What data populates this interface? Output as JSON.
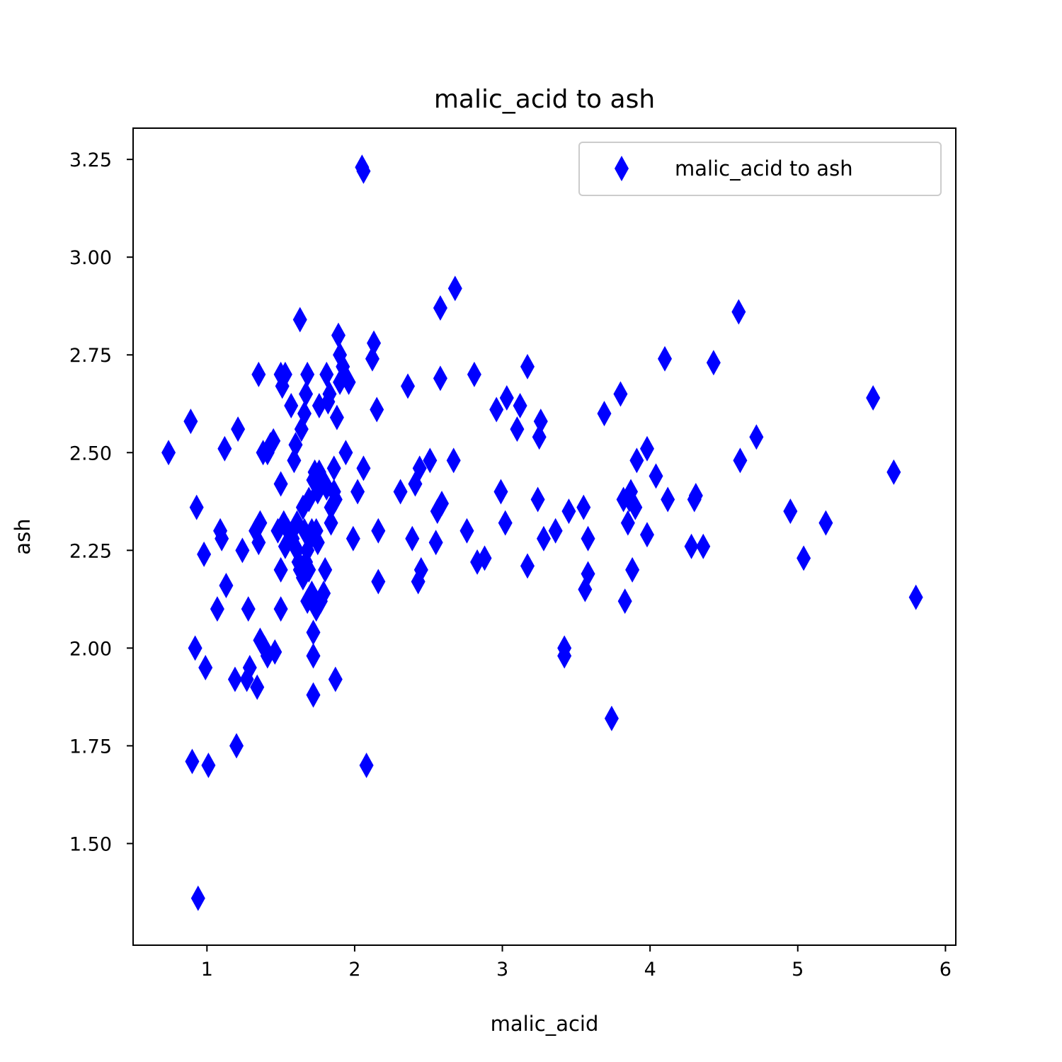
{
  "chart_data": {
    "type": "scatter",
    "title": "malic_acid to ash",
    "xlabel": "malic_acid",
    "ylabel": "ash",
    "xlim": [
      0.5,
      6.07
    ],
    "ylim": [
      1.24,
      3.33
    ],
    "xticks": [
      1,
      2,
      3,
      4,
      5,
      6
    ],
    "xtick_labels": [
      "1",
      "2",
      "3",
      "4",
      "5",
      "6"
    ],
    "yticks": [
      1.5,
      1.75,
      2.0,
      2.25,
      2.5,
      2.75,
      3.0,
      3.25
    ],
    "ytick_labels": [
      "1.50",
      "1.75",
      "2.00",
      "2.25",
      "2.50",
      "2.75",
      "3.00",
      "3.25"
    ],
    "grid": false,
    "legend": {
      "position": "top-right",
      "entries": [
        "malic_acid to ash"
      ]
    },
    "marker": "thin_diamond",
    "color": "#0000ff",
    "series": [
      {
        "name": "malic_acid to ash",
        "points": [
          [
            0.74,
            2.5
          ],
          [
            0.89,
            2.58
          ],
          [
            0.9,
            1.71
          ],
          [
            0.92,
            2.0
          ],
          [
            0.93,
            2.36
          ],
          [
            0.94,
            1.36
          ],
          [
            0.98,
            2.24
          ],
          [
            0.99,
            1.95
          ],
          [
            1.01,
            1.7
          ],
          [
            1.07,
            2.1
          ],
          [
            1.09,
            2.3
          ],
          [
            1.1,
            2.28
          ],
          [
            1.12,
            2.51
          ],
          [
            1.13,
            2.16
          ],
          [
            1.19,
            1.92
          ],
          [
            1.2,
            1.75
          ],
          [
            1.21,
            2.56
          ],
          [
            1.24,
            2.25
          ],
          [
            1.27,
            1.92
          ],
          [
            1.28,
            2.1
          ],
          [
            1.29,
            1.95
          ],
          [
            1.33,
            2.3
          ],
          [
            1.34,
            1.9
          ],
          [
            1.35,
            2.27
          ],
          [
            1.35,
            2.7
          ],
          [
            1.36,
            2.32
          ],
          [
            1.36,
            2.02
          ],
          [
            1.38,
            2.5
          ],
          [
            1.39,
            2.0
          ],
          [
            1.41,
            1.98
          ],
          [
            1.41,
            2.5
          ],
          [
            1.43,
            2.52
          ],
          [
            1.45,
            2.53
          ],
          [
            1.46,
            1.99
          ],
          [
            1.48,
            2.3
          ],
          [
            1.5,
            2.2
          ],
          [
            1.5,
            2.42
          ],
          [
            1.5,
            2.1
          ],
          [
            1.5,
            2.7
          ],
          [
            1.51,
            2.67
          ],
          [
            1.52,
            2.32
          ],
          [
            1.53,
            2.7
          ],
          [
            1.53,
            2.26
          ],
          [
            1.55,
            2.3
          ],
          [
            1.57,
            2.62
          ],
          [
            1.58,
            2.28
          ],
          [
            1.59,
            2.48
          ],
          [
            1.6,
            2.52
          ],
          [
            1.61,
            2.25
          ],
          [
            1.61,
            2.32
          ],
          [
            1.62,
            2.22
          ],
          [
            1.63,
            2.84
          ],
          [
            1.63,
            2.2
          ],
          [
            1.64,
            2.56
          ],
          [
            1.65,
            2.36
          ],
          [
            1.65,
            2.18
          ],
          [
            1.66,
            2.3
          ],
          [
            1.66,
            2.6
          ],
          [
            1.67,
            2.22
          ],
          [
            1.67,
            2.65
          ],
          [
            1.68,
            2.12
          ],
          [
            1.68,
            2.25
          ],
          [
            1.68,
            2.7
          ],
          [
            1.69,
            2.38
          ],
          [
            1.69,
            2.2
          ],
          [
            1.7,
            2.28
          ],
          [
            1.71,
            2.3
          ],
          [
            1.71,
            2.14
          ],
          [
            1.72,
            2.43
          ],
          [
            1.72,
            2.04
          ],
          [
            1.72,
            1.98
          ],
          [
            1.72,
            1.88
          ],
          [
            1.73,
            2.45
          ],
          [
            1.74,
            2.3
          ],
          [
            1.74,
            2.1
          ],
          [
            1.75,
            2.4
          ],
          [
            1.75,
            2.27
          ],
          [
            1.76,
            2.45
          ],
          [
            1.76,
            2.62
          ],
          [
            1.77,
            2.12
          ],
          [
            1.78,
            2.43
          ],
          [
            1.79,
            2.14
          ],
          [
            1.8,
            2.42
          ],
          [
            1.8,
            2.2
          ],
          [
            1.81,
            2.41
          ],
          [
            1.81,
            2.7
          ],
          [
            1.82,
            2.63
          ],
          [
            1.83,
            2.65
          ],
          [
            1.84,
            2.32
          ],
          [
            1.84,
            2.36
          ],
          [
            1.86,
            2.4
          ],
          [
            1.86,
            2.46
          ],
          [
            1.87,
            2.38
          ],
          [
            1.87,
            1.92
          ],
          [
            1.88,
            2.59
          ],
          [
            1.89,
            2.8
          ],
          [
            1.9,
            2.68
          ],
          [
            1.9,
            2.75
          ],
          [
            1.92,
            2.72
          ],
          [
            1.93,
            2.7
          ],
          [
            1.94,
            2.5
          ],
          [
            1.96,
            2.68
          ],
          [
            1.99,
            2.28
          ],
          [
            2.02,
            2.4
          ],
          [
            2.05,
            3.23
          ],
          [
            2.06,
            3.22
          ],
          [
            2.06,
            2.46
          ],
          [
            2.08,
            1.7
          ],
          [
            2.12,
            2.74
          ],
          [
            2.13,
            2.78
          ],
          [
            2.15,
            2.61
          ],
          [
            2.16,
            2.17
          ],
          [
            2.16,
            2.3
          ],
          [
            2.31,
            2.4
          ],
          [
            2.36,
            2.67
          ],
          [
            2.39,
            2.28
          ],
          [
            2.41,
            2.42
          ],
          [
            2.43,
            2.17
          ],
          [
            2.44,
            2.46
          ],
          [
            2.45,
            2.2
          ],
          [
            2.51,
            2.48
          ],
          [
            2.55,
            2.27
          ],
          [
            2.56,
            2.35
          ],
          [
            2.58,
            2.87
          ],
          [
            2.58,
            2.69
          ],
          [
            2.59,
            2.37
          ],
          [
            2.67,
            2.48
          ],
          [
            2.68,
            2.92
          ],
          [
            2.76,
            2.3
          ],
          [
            2.81,
            2.7
          ],
          [
            2.83,
            2.22
          ],
          [
            2.88,
            2.23
          ],
          [
            2.96,
            2.61
          ],
          [
            2.99,
            2.4
          ],
          [
            3.02,
            2.32
          ],
          [
            3.03,
            2.64
          ],
          [
            3.1,
            2.56
          ],
          [
            3.12,
            2.62
          ],
          [
            3.17,
            2.21
          ],
          [
            3.17,
            2.72
          ],
          [
            3.24,
            2.38
          ],
          [
            3.25,
            2.54
          ],
          [
            3.26,
            2.58
          ],
          [
            3.28,
            2.28
          ],
          [
            3.36,
            2.3
          ],
          [
            3.42,
            2.0
          ],
          [
            3.42,
            1.98
          ],
          [
            3.45,
            2.35
          ],
          [
            3.55,
            2.36
          ],
          [
            3.56,
            2.15
          ],
          [
            3.58,
            2.19
          ],
          [
            3.58,
            2.28
          ],
          [
            3.69,
            2.6
          ],
          [
            3.74,
            1.82
          ],
          [
            3.8,
            2.65
          ],
          [
            3.82,
            2.38
          ],
          [
            3.83,
            2.12
          ],
          [
            3.85,
            2.32
          ],
          [
            3.86,
            2.38
          ],
          [
            3.87,
            2.4
          ],
          [
            3.88,
            2.2
          ],
          [
            3.9,
            2.36
          ],
          [
            3.91,
            2.48
          ],
          [
            3.98,
            2.29
          ],
          [
            3.98,
            2.51
          ],
          [
            4.04,
            2.44
          ],
          [
            4.1,
            2.74
          ],
          [
            4.12,
            2.38
          ],
          [
            4.28,
            2.26
          ],
          [
            4.3,
            2.38
          ],
          [
            4.31,
            2.39
          ],
          [
            4.36,
            2.26
          ],
          [
            4.43,
            2.73
          ],
          [
            4.6,
            2.86
          ],
          [
            4.61,
            2.48
          ],
          [
            4.72,
            2.54
          ],
          [
            4.95,
            2.35
          ],
          [
            5.04,
            2.23
          ],
          [
            5.19,
            2.32
          ],
          [
            5.51,
            2.64
          ],
          [
            5.65,
            2.45
          ],
          [
            5.8,
            2.13
          ]
        ]
      }
    ]
  }
}
